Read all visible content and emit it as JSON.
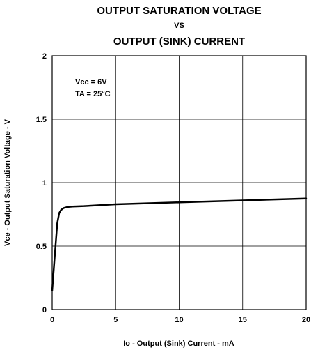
{
  "chart_data": {
    "type": "line",
    "title_lines": [
      "OUTPUT SATURATION VOLTAGE",
      "VS",
      "OUTPUT (SINK) CURRENT"
    ],
    "xlabel": "Io - Output (Sink) Current - mA",
    "ylabel": "Vce - Output Saturation Voltage - V",
    "xlim": [
      0,
      20
    ],
    "ylim": [
      0,
      2
    ],
    "x_ticks": [
      "0",
      "5",
      "10",
      "15",
      "20"
    ],
    "y_ticks": [
      "0",
      "0.5",
      "1",
      "1.5",
      "2"
    ],
    "grid": true,
    "annotations": [
      "Vcc = 6V",
      "TA = 25°C"
    ],
    "series": [
      {
        "x": [
          0.0,
          0.2,
          0.4,
          0.55,
          0.7,
          0.9,
          1.2,
          1.6,
          2.5,
          5,
          10,
          15,
          20
        ],
        "y": [
          0.15,
          0.42,
          0.68,
          0.76,
          0.785,
          0.8,
          0.808,
          0.812,
          0.815,
          0.83,
          0.845,
          0.86,
          0.875
        ]
      }
    ]
  }
}
